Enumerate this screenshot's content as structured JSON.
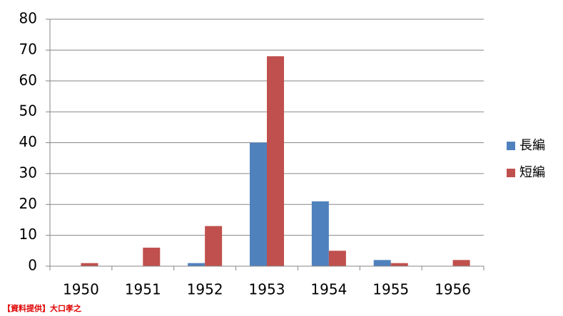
{
  "chart_data": {
    "type": "bar",
    "categories": [
      "1950",
      "1951",
      "1952",
      "1953",
      "1954",
      "1955",
      "1956"
    ],
    "series": [
      {
        "name": "長編",
        "color": "#4f81bd",
        "values": [
          0,
          0,
          1,
          40,
          21,
          2,
          0
        ]
      },
      {
        "name": "短編",
        "color": "#c0504d",
        "values": [
          1,
          6,
          13,
          68,
          5,
          1,
          2
        ]
      }
    ],
    "ylim": [
      0,
      80
    ],
    "yticks": [
      0,
      10,
      20,
      30,
      40,
      50,
      60,
      70,
      80
    ],
    "grid": true,
    "legend": "right",
    "note": "【資料提供】大口孝之"
  }
}
